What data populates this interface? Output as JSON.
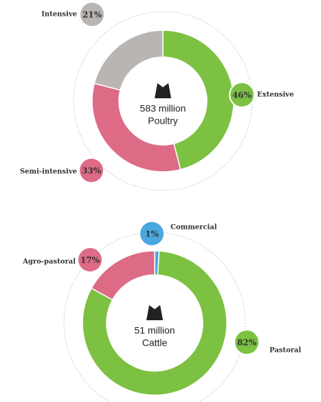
{
  "chart_data": [
    {
      "type": "pie",
      "center_text": [
        "583 million",
        "Poultry"
      ],
      "categories": [
        "Extensive",
        "Semi-intensive",
        "Intensive"
      ],
      "values": [
        46,
        33,
        21
      ],
      "value_labels": [
        "46%",
        "33%",
        "21%"
      ],
      "colors": [
        "#7cc142",
        "#dd6b86",
        "#b9b5b3"
      ]
    },
    {
      "type": "pie",
      "center_text": [
        "51 million",
        "Cattle"
      ],
      "categories": [
        "Commercial",
        "Pastoral",
        "Agro-pastoral"
      ],
      "values": [
        1,
        82,
        17
      ],
      "value_labels": [
        "1%",
        "82%",
        "17%"
      ],
      "colors": [
        "#4aa8e0",
        "#7cc142",
        "#dd6b86"
      ]
    }
  ]
}
